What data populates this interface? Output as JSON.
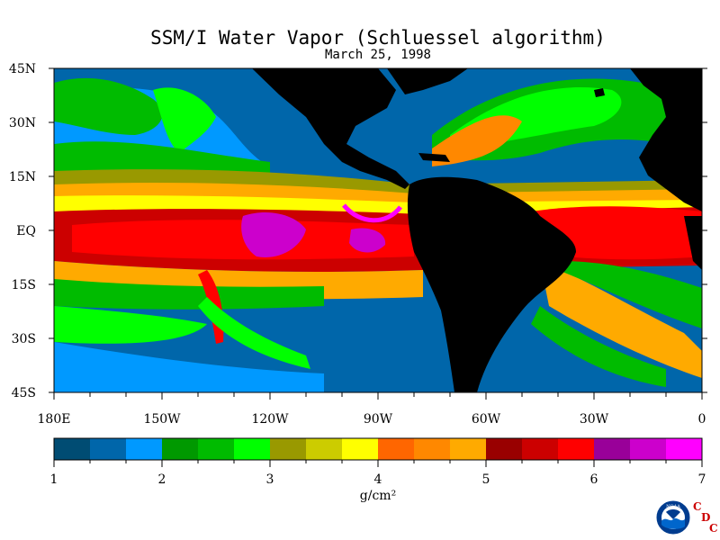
{
  "title": "SSM/I Water Vapor (Schluessel algorithm)",
  "subtitle": "March 25, 1998",
  "map": {
    "type": "heatmap",
    "lat_ticks": [
      "45N",
      "30N",
      "15N",
      "EQ",
      "15S",
      "30S",
      "45S"
    ],
    "lon_ticks": [
      "180E",
      "150W",
      "120W",
      "90W",
      "60W",
      "30W",
      "0"
    ],
    "lat_range": [
      -45,
      45
    ],
    "lon_range": [
      -180,
      0
    ],
    "land_color": "#000000"
  },
  "colorbar": {
    "label": "g/cm²",
    "ticks": [
      "1",
      "2",
      "3",
      "4",
      "5",
      "6",
      "7"
    ],
    "range": [
      1,
      7
    ],
    "colors": [
      "#004c73",
      "#0066aa",
      "#0099ff",
      "#009900",
      "#00bb00",
      "#00ff00",
      "#999900",
      "#cccc00",
      "#ffff00",
      "#ff6600",
      "#ff8800",
      "#ffaa00",
      "#990000",
      "#cc0000",
      "#ff0000",
      "#990099",
      "#cc00cc",
      "#ff00ff"
    ]
  },
  "logo": {
    "text": "NOAA",
    "icon": "noaa-logo-icon",
    "letters": [
      "C",
      "D",
      "C"
    ],
    "letter_color": "#cc0000"
  }
}
